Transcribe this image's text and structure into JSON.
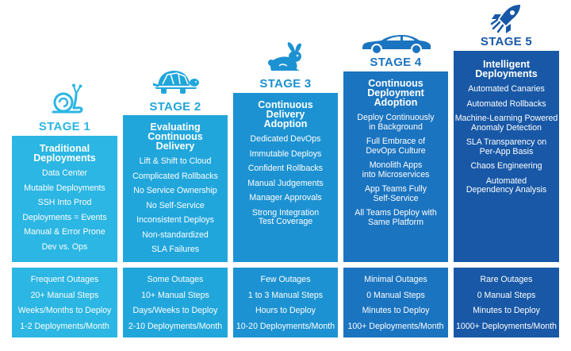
{
  "colors": {
    "stage1": "#2bb6e3",
    "stage2": "#21a6dc",
    "stage3": "#1d92d2",
    "stage4": "#1b74c0",
    "stage5": "#1858a6"
  },
  "stages": [
    {
      "label": "STAGE 1",
      "icon": "snail-icon",
      "title": "Traditional\nDeployments",
      "items": [
        "Data Center",
        "Mutable Deployments",
        "SSH Into Prod",
        "Deployments = Events",
        "Manual & Error Prone",
        "Dev vs. Ops"
      ],
      "metrics": [
        "Frequent Outages",
        "20+ Manual Steps",
        "Weeks/Months to Deploy",
        "1-2 Deployments/Month"
      ]
    },
    {
      "label": "STAGE 2",
      "icon": "turtle-icon",
      "title": "Evaluating\nContinuous\nDelivery",
      "items": [
        "Lift & Shift to Cloud",
        "Complicated Rollbacks",
        "No Service Ownership",
        "No Self-Service",
        "Inconsistent Deploys",
        "Non-standardized",
        "SLA Failures"
      ],
      "metrics": [
        "Some Outages",
        "10+ Manual Steps",
        "Days/Weeks to Deploy",
        "2-10 Deployments/Month"
      ]
    },
    {
      "label": "STAGE 3",
      "icon": "rabbit-icon",
      "title": "Continuous\nDelivery\nAdoption",
      "items": [
        "Dedicated DevOps",
        "Immutable Deploys",
        "Confident Rollbacks",
        "Manual Judgements",
        "Manager Approvals",
        "Strong Integration\nTest Coverage"
      ],
      "metrics": [
        "Few Outages",
        "1 to 3 Manual Steps",
        "Hours to Deploy",
        "10-20 Deployments/Month"
      ]
    },
    {
      "label": "STAGE 4",
      "icon": "sports-car-icon",
      "title": "Continuous\nDeployment\nAdoption",
      "items": [
        "Deploy Continuously\nin Background",
        "Full Embrace of\nDevOps Culture",
        "Monolith Apps\ninto Microservices",
        "App Teams Fully\nSelf-Service",
        "All Teams Deploy with\nSame Platform"
      ],
      "metrics": [
        "Minimal Outages",
        "0 Manual Steps",
        "Minutes to Deploy",
        "100+ Deployments/Month"
      ]
    },
    {
      "label": "STAGE 5",
      "icon": "rocket-icon",
      "title": "Intelligent\nDeployments",
      "items": [
        "Automated Canaries",
        "Automated Rollbacks",
        "Machine-Learning Powered\nAnomaly Detection",
        "SLA Transparency on\nPer-App Basis",
        "Chaos Engineering",
        "Automated\nDependency Analysis"
      ],
      "metrics": [
        "Rare Outages",
        "0 Manual Steps",
        "Minutes to Deploy",
        "1000+ Deployments/Month"
      ]
    }
  ]
}
